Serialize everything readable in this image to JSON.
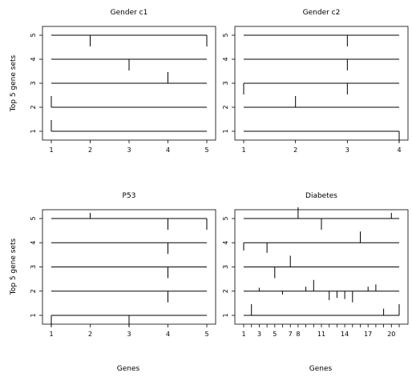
{
  "figure": {
    "y_label": "Top 5 gene sets",
    "x_label": "Genes"
  },
  "chart_data": [
    {
      "type": "line",
      "title": "Gender c1",
      "xlabel": "",
      "ylabel": "Top 5 gene sets",
      "xlim": [
        1,
        5
      ],
      "ylim": [
        1,
        5
      ],
      "x_ticks": [
        1,
        2,
        3,
        4,
        5
      ],
      "y_ticks": [
        1,
        2,
        3,
        4,
        5
      ],
      "rows": [
        {
          "set": 1,
          "marks": [
            {
              "x": 1,
              "v": 0.5
            }
          ]
        },
        {
          "set": 2,
          "marks": [
            {
              "x": 1,
              "v": 0.5
            }
          ]
        },
        {
          "set": 3,
          "marks": [
            {
              "x": 4,
              "v": 0.5
            }
          ]
        },
        {
          "set": 4,
          "marks": [
            {
              "x": 3,
              "v": -0.5
            }
          ]
        },
        {
          "set": 5,
          "marks": [
            {
              "x": 2,
              "v": -0.5
            },
            {
              "x": 5,
              "v": -0.5
            }
          ]
        }
      ]
    },
    {
      "type": "line",
      "title": "Gender c2",
      "xlabel": "",
      "ylabel": "",
      "xlim": [
        1,
        4
      ],
      "ylim": [
        1,
        5
      ],
      "x_ticks": [
        1,
        2,
        3,
        4
      ],
      "y_ticks": [
        1,
        2,
        3,
        4,
        5
      ],
      "rows": [
        {
          "set": 1,
          "marks": [
            {
              "x": 4,
              "v": -0.5
            }
          ]
        },
        {
          "set": 2,
          "marks": [
            {
              "x": 2,
              "v": 0.5
            }
          ]
        },
        {
          "set": 3,
          "marks": [
            {
              "x": 1,
              "v": -0.5
            },
            {
              "x": 3,
              "v": -0.5
            }
          ]
        },
        {
          "set": 4,
          "marks": [
            {
              "x": 3,
              "v": -0.5
            }
          ]
        },
        {
          "set": 5,
          "marks": [
            {
              "x": 3,
              "v": -0.5
            }
          ]
        }
      ]
    },
    {
      "type": "line",
      "title": "P53",
      "xlabel": "Genes",
      "ylabel": "Top 5 gene sets",
      "xlim": [
        1,
        5
      ],
      "ylim": [
        1,
        5
      ],
      "x_ticks": [
        1,
        2,
        3,
        4,
        5
      ],
      "y_ticks": [
        1,
        2,
        3,
        4,
        5
      ],
      "rows": [
        {
          "set": 1,
          "marks": [
            {
              "x": 1,
              "v": -0.5
            },
            {
              "x": 3,
              "v": -0.5
            }
          ]
        },
        {
          "set": 2,
          "marks": [
            {
              "x": 4,
              "v": -0.5
            }
          ]
        },
        {
          "set": 3,
          "marks": [
            {
              "x": 4,
              "v": -0.5
            }
          ]
        },
        {
          "set": 4,
          "marks": [
            {
              "x": 4,
              "v": -0.5
            }
          ]
        },
        {
          "set": 5,
          "marks": [
            {
              "x": 2,
              "v": 0.25
            },
            {
              "x": 4,
              "v": -0.5
            },
            {
              "x": 5,
              "v": -0.5
            }
          ]
        }
      ]
    },
    {
      "type": "line",
      "title": "Diabetes",
      "xlabel": "Genes",
      "ylabel": "",
      "xlim": [
        1,
        21
      ],
      "ylim": [
        1,
        5
      ],
      "x_ticks": [
        1,
        2,
        3,
        4,
        5,
        6,
        7,
        8,
        9,
        10,
        11,
        12,
        13,
        14,
        15,
        16,
        17,
        18,
        19,
        20,
        21
      ],
      "x_tick_labels": [
        "1",
        "",
        "3",
        "",
        "5",
        "",
        "7",
        "8",
        "",
        "",
        "11",
        "",
        "",
        "14",
        "",
        "",
        "17",
        "",
        "",
        "20",
        ""
      ],
      "y_ticks": [
        1,
        2,
        3,
        4,
        5
      ],
      "rows": [
        {
          "set": 1,
          "marks": [
            {
              "x": 2,
              "v": 0.5
            },
            {
              "x": 19,
              "v": 0.3
            },
            {
              "x": 21,
              "v": 0.5
            }
          ]
        },
        {
          "set": 2,
          "marks": [
            {
              "x": 3,
              "v": 0.15
            },
            {
              "x": 6,
              "v": -0.15
            },
            {
              "x": 9,
              "v": 0.2
            },
            {
              "x": 10,
              "v": 0.5
            },
            {
              "x": 12,
              "v": -0.4
            },
            {
              "x": 13,
              "v": -0.3
            },
            {
              "x": 14,
              "v": -0.35
            },
            {
              "x": 15,
              "v": -0.5
            },
            {
              "x": 17,
              "v": 0.2
            },
            {
              "x": 18,
              "v": 0.3
            }
          ]
        },
        {
          "set": 3,
          "marks": [
            {
              "x": 5,
              "v": -0.5
            },
            {
              "x": 7,
              "v": 0.5
            }
          ]
        },
        {
          "set": 4,
          "marks": [
            {
              "x": 1,
              "v": -0.35
            },
            {
              "x": 4,
              "v": -0.45
            },
            {
              "x": 16,
              "v": 0.5
            }
          ]
        },
        {
          "set": 5,
          "marks": [
            {
              "x": 8,
              "v": 0.5
            },
            {
              "x": 11,
              "v": -0.5
            },
            {
              "x": 20,
              "v": 0.25
            }
          ]
        }
      ]
    }
  ]
}
